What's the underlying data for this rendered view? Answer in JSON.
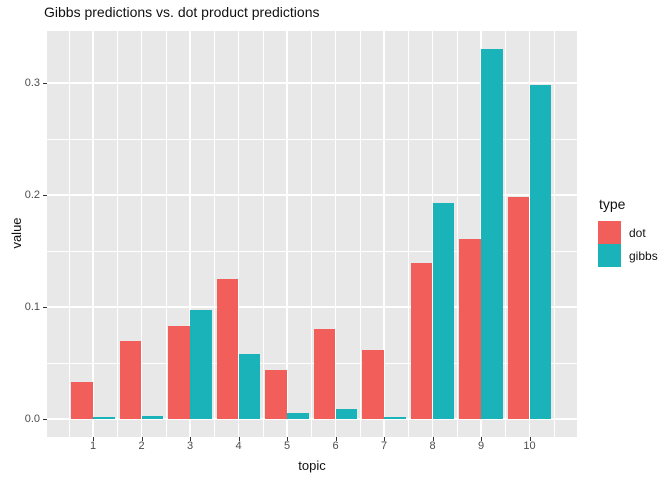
{
  "chart_data": {
    "type": "bar",
    "title": "Gibbs predictions vs. dot product predictions",
    "xlabel": "topic",
    "ylabel": "value",
    "legend_title": "type",
    "legend_position": "right",
    "grid": true,
    "panel_bg": "#E8E8E8",
    "grid_color": "#FFFFFF",
    "categories": [
      "1",
      "2",
      "3",
      "4",
      "5",
      "6",
      "7",
      "8",
      "9",
      "10"
    ],
    "y_ticks": [
      "0.0",
      "0.1",
      "0.2",
      "0.3"
    ],
    "ylim": [
      0,
      0.35
    ],
    "bar_mode": "dodge",
    "series": [
      {
        "name": "dot",
        "color": "#F25E59",
        "values": [
          0.033,
          0.07,
          0.083,
          0.125,
          0.044,
          0.08,
          0.062,
          0.139,
          0.161,
          0.198
        ]
      },
      {
        "name": "gibbs",
        "color": "#1AB3B9",
        "values": [
          0.002,
          0.003,
          0.097,
          0.058,
          0.005,
          0.009,
          0.002,
          0.193,
          0.33,
          0.298
        ]
      }
    ]
  }
}
